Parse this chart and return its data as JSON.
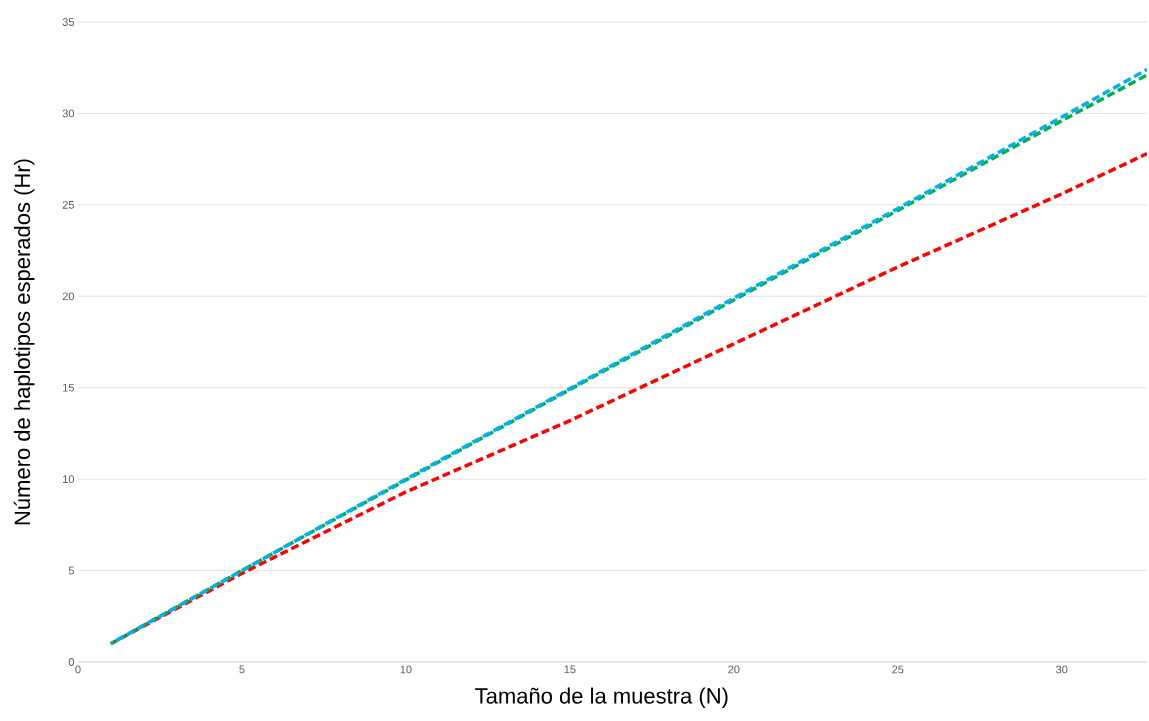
{
  "chart_data": {
    "type": "line",
    "xlabel": "Tamaño de la muestra (N)",
    "ylabel": "Número de haplotipos esperados (Hr)",
    "xlim": [
      0,
      32.6
    ],
    "ylim": [
      0,
      35
    ],
    "xticks": [
      0,
      5,
      10,
      15,
      20,
      25,
      30
    ],
    "yticks": [
      0,
      5,
      10,
      15,
      20,
      25,
      30,
      35
    ],
    "grid": "y",
    "line_style": "dashed",
    "marker": "none",
    "x": [
      1,
      5,
      10,
      15,
      20,
      25,
      30,
      32.6
    ],
    "series": [
      {
        "color": "#ff0000",
        "values": [
          1,
          4.85,
          9.3,
          13.2,
          17.4,
          21.6,
          25.6,
          27.8
        ]
      },
      {
        "color": "#00b050",
        "values": [
          1,
          5,
          9.95,
          14.9,
          19.8,
          24.7,
          29.6,
          32.1
        ]
      },
      {
        "color": "#00b0f0",
        "values": [
          1,
          5,
          10,
          14.95,
          19.9,
          24.8,
          29.8,
          32.4
        ]
      }
    ]
  }
}
